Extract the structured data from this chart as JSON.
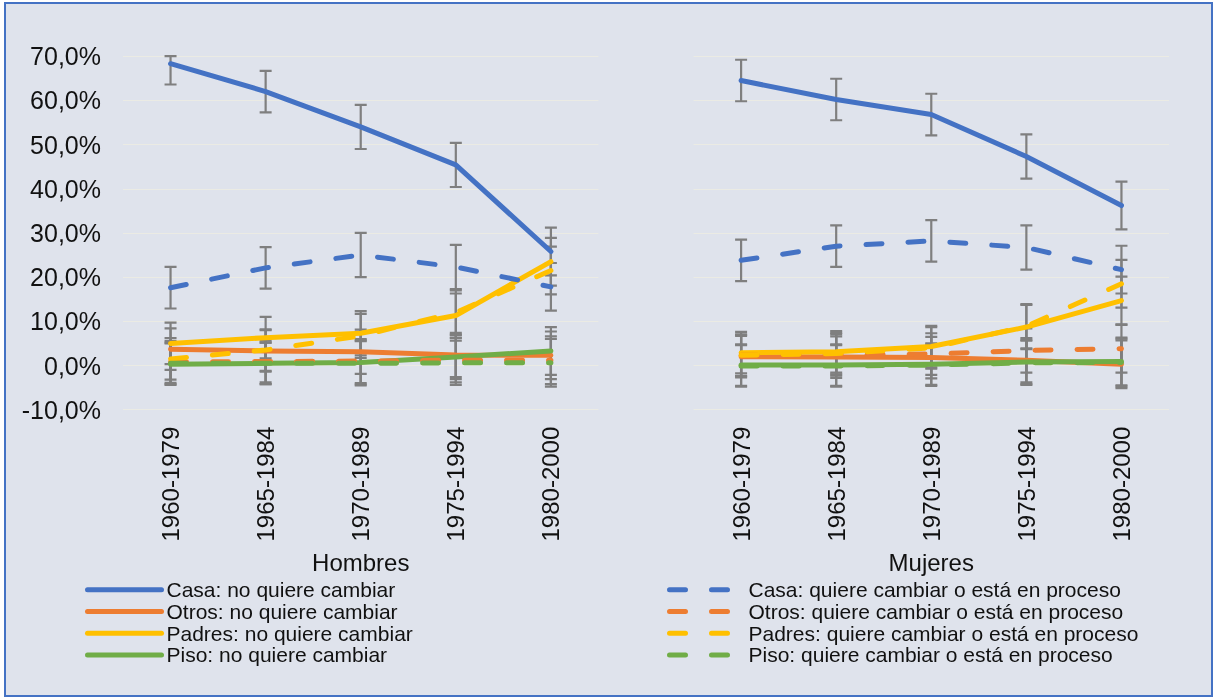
{
  "chart_data": [
    {
      "type": "line",
      "xlabel": "Hombres",
      "categories": [
        "1960-1979",
        "1965-1984",
        "1970-1989",
        "1975-1994",
        "1980-2000"
      ],
      "ylim": [
        -10,
        70
      ],
      "yticks": [
        {
          "value": -10,
          "label": "-10,0%"
        },
        {
          "value": 0,
          "label": "0,0%"
        },
        {
          "value": 10,
          "label": "10,0%"
        },
        {
          "value": 20,
          "label": "20,0%"
        },
        {
          "value": 30,
          "label": "30,0%"
        },
        {
          "value": 40,
          "label": "40,0%"
        },
        {
          "value": 50,
          "label": "50,0%"
        },
        {
          "value": 60,
          "label": "60,0%"
        },
        {
          "value": 70,
          "label": "70,0%"
        }
      ],
      "grid": "y",
      "legend": "bottom",
      "series": [
        {
          "name": "Casa: no quiere cambiar",
          "color": "#4472c4",
          "line_style": "solid",
          "values": [
            68.3,
            62.0,
            54.0,
            45.4,
            25.8
          ],
          "errors": [
            [
              63.6,
              70.0
            ],
            4.7,
            5.0,
            5.0,
            5.4
          ]
        },
        {
          "name": "Otros: no quiere cambiar",
          "color": "#ed7d31",
          "line_style": "solid",
          "values": [
            3.7,
            3.3,
            3.1,
            2.4,
            2.3
          ],
          "errors": [
            4.7,
            4.7,
            5.0,
            5.0,
            5.4
          ]
        },
        {
          "name": "Padres: no quiere cambiar",
          "color": "#ffc000",
          "line_style": "solid",
          "values": [
            5.0,
            6.3,
            7.3,
            11.3,
            23.5
          ],
          "errors": [
            4.7,
            4.7,
            5.0,
            5.0,
            5.4
          ]
        },
        {
          "name": "Piso: no quiere cambiar",
          "color": "#70ad47",
          "line_style": "solid",
          "values": [
            0.3,
            0.5,
            0.7,
            1.9,
            3.3
          ],
          "errors": [
            4.7,
            4.7,
            5.0,
            5.0,
            5.4
          ]
        },
        {
          "name": "Casa: quiere cambiar o está en proceso",
          "color": "#4472c4",
          "line_style": "dashed",
          "values": [
            17.6,
            22.1,
            25.0,
            22.3,
            17.8
          ],
          "errors": [
            4.7,
            4.7,
            5.0,
            5.0,
            5.4
          ]
        },
        {
          "name": "Otros: quiere cambiar o está en proceso",
          "color": "#ed7d31",
          "line_style": "dashed",
          "values": [
            0.8,
            0.9,
            1.0,
            1.2,
            1.2
          ],
          "errors": [
            4.7,
            4.7,
            5.0,
            5.0,
            5.4
          ]
        },
        {
          "name": "Padres: quiere cambiar o está en proceso",
          "color": "#ffc000",
          "line_style": "dashed",
          "values": [
            1.5,
            3.5,
            6.7,
            12.0,
            21.5
          ],
          "errors": [
            4.7,
            4.7,
            5.0,
            5.0,
            5.4
          ]
        },
        {
          "name": "Piso: quiere cambiar o está en proceso",
          "color": "#70ad47",
          "line_style": "dashed",
          "values": [
            0.5,
            0.5,
            0.5,
            0.6,
            0.6
          ],
          "errors": [
            4.7,
            4.7,
            5.0,
            5.0,
            5.4
          ]
        }
      ]
    },
    {
      "type": "line",
      "xlabel": "Mujeres",
      "categories": [
        "1960-1979",
        "1965-1984",
        "1970-1989",
        "1975-1994",
        "1980-2000"
      ],
      "ylim": [
        -10,
        70
      ],
      "yticks": [
        -10,
        0,
        10,
        20,
        30,
        40,
        50,
        60,
        70
      ],
      "grid": "y",
      "tick_labels": "x",
      "series": [
        {
          "color": "#4472c4",
          "line_style": "solid",
          "values": [
            64.5,
            60.2,
            56.8,
            47.3,
            36.2
          ],
          "errors": [
            4.7,
            4.7,
            4.7,
            5.0,
            5.4
          ]
        },
        {
          "color": "#ed7d31",
          "line_style": "solid",
          "values": [
            2.0,
            1.9,
            1.8,
            1.2,
            0.3
          ],
          "errors": [
            4.7,
            4.7,
            4.7,
            5.0,
            5.4
          ]
        },
        {
          "color": "#ffc000",
          "line_style": "solid",
          "values": [
            2.9,
            3.1,
            4.3,
            8.7,
            14.7
          ],
          "errors": [
            4.7,
            4.7,
            4.7,
            5.0,
            5.4
          ]
        },
        {
          "color": "#70ad47",
          "line_style": "solid",
          "values": [
            0.1,
            0.1,
            0.3,
            0.8,
            0.9
          ],
          "errors": [
            4.7,
            4.7,
            4.7,
            5.0,
            5.4
          ]
        },
        {
          "color": "#4472c4",
          "line_style": "dashed",
          "values": [
            23.8,
            27.0,
            28.2,
            26.7,
            21.7
          ],
          "errors": [
            4.7,
            4.7,
            4.7,
            5.0,
            5.4
          ]
        },
        {
          "color": "#ed7d31",
          "line_style": "dashed",
          "values": [
            2.3,
            2.4,
            2.6,
            3.4,
            3.8
          ],
          "errors": [
            4.7,
            4.7,
            4.7,
            5.0,
            5.4
          ]
        },
        {
          "color": "#ffc000",
          "line_style": "dashed",
          "values": [
            2.3,
            2.7,
            4.0,
            8.9,
            18.5
          ],
          "errors": [
            4.7,
            4.7,
            4.7,
            5.0,
            5.4
          ]
        },
        {
          "color": "#70ad47",
          "line_style": "dashed",
          "values": [
            -0.1,
            -0.1,
            0.1,
            0.6,
            0.7
          ],
          "errors": [
            4.7,
            4.7,
            4.7,
            5.0,
            5.4
          ]
        }
      ]
    }
  ]
}
